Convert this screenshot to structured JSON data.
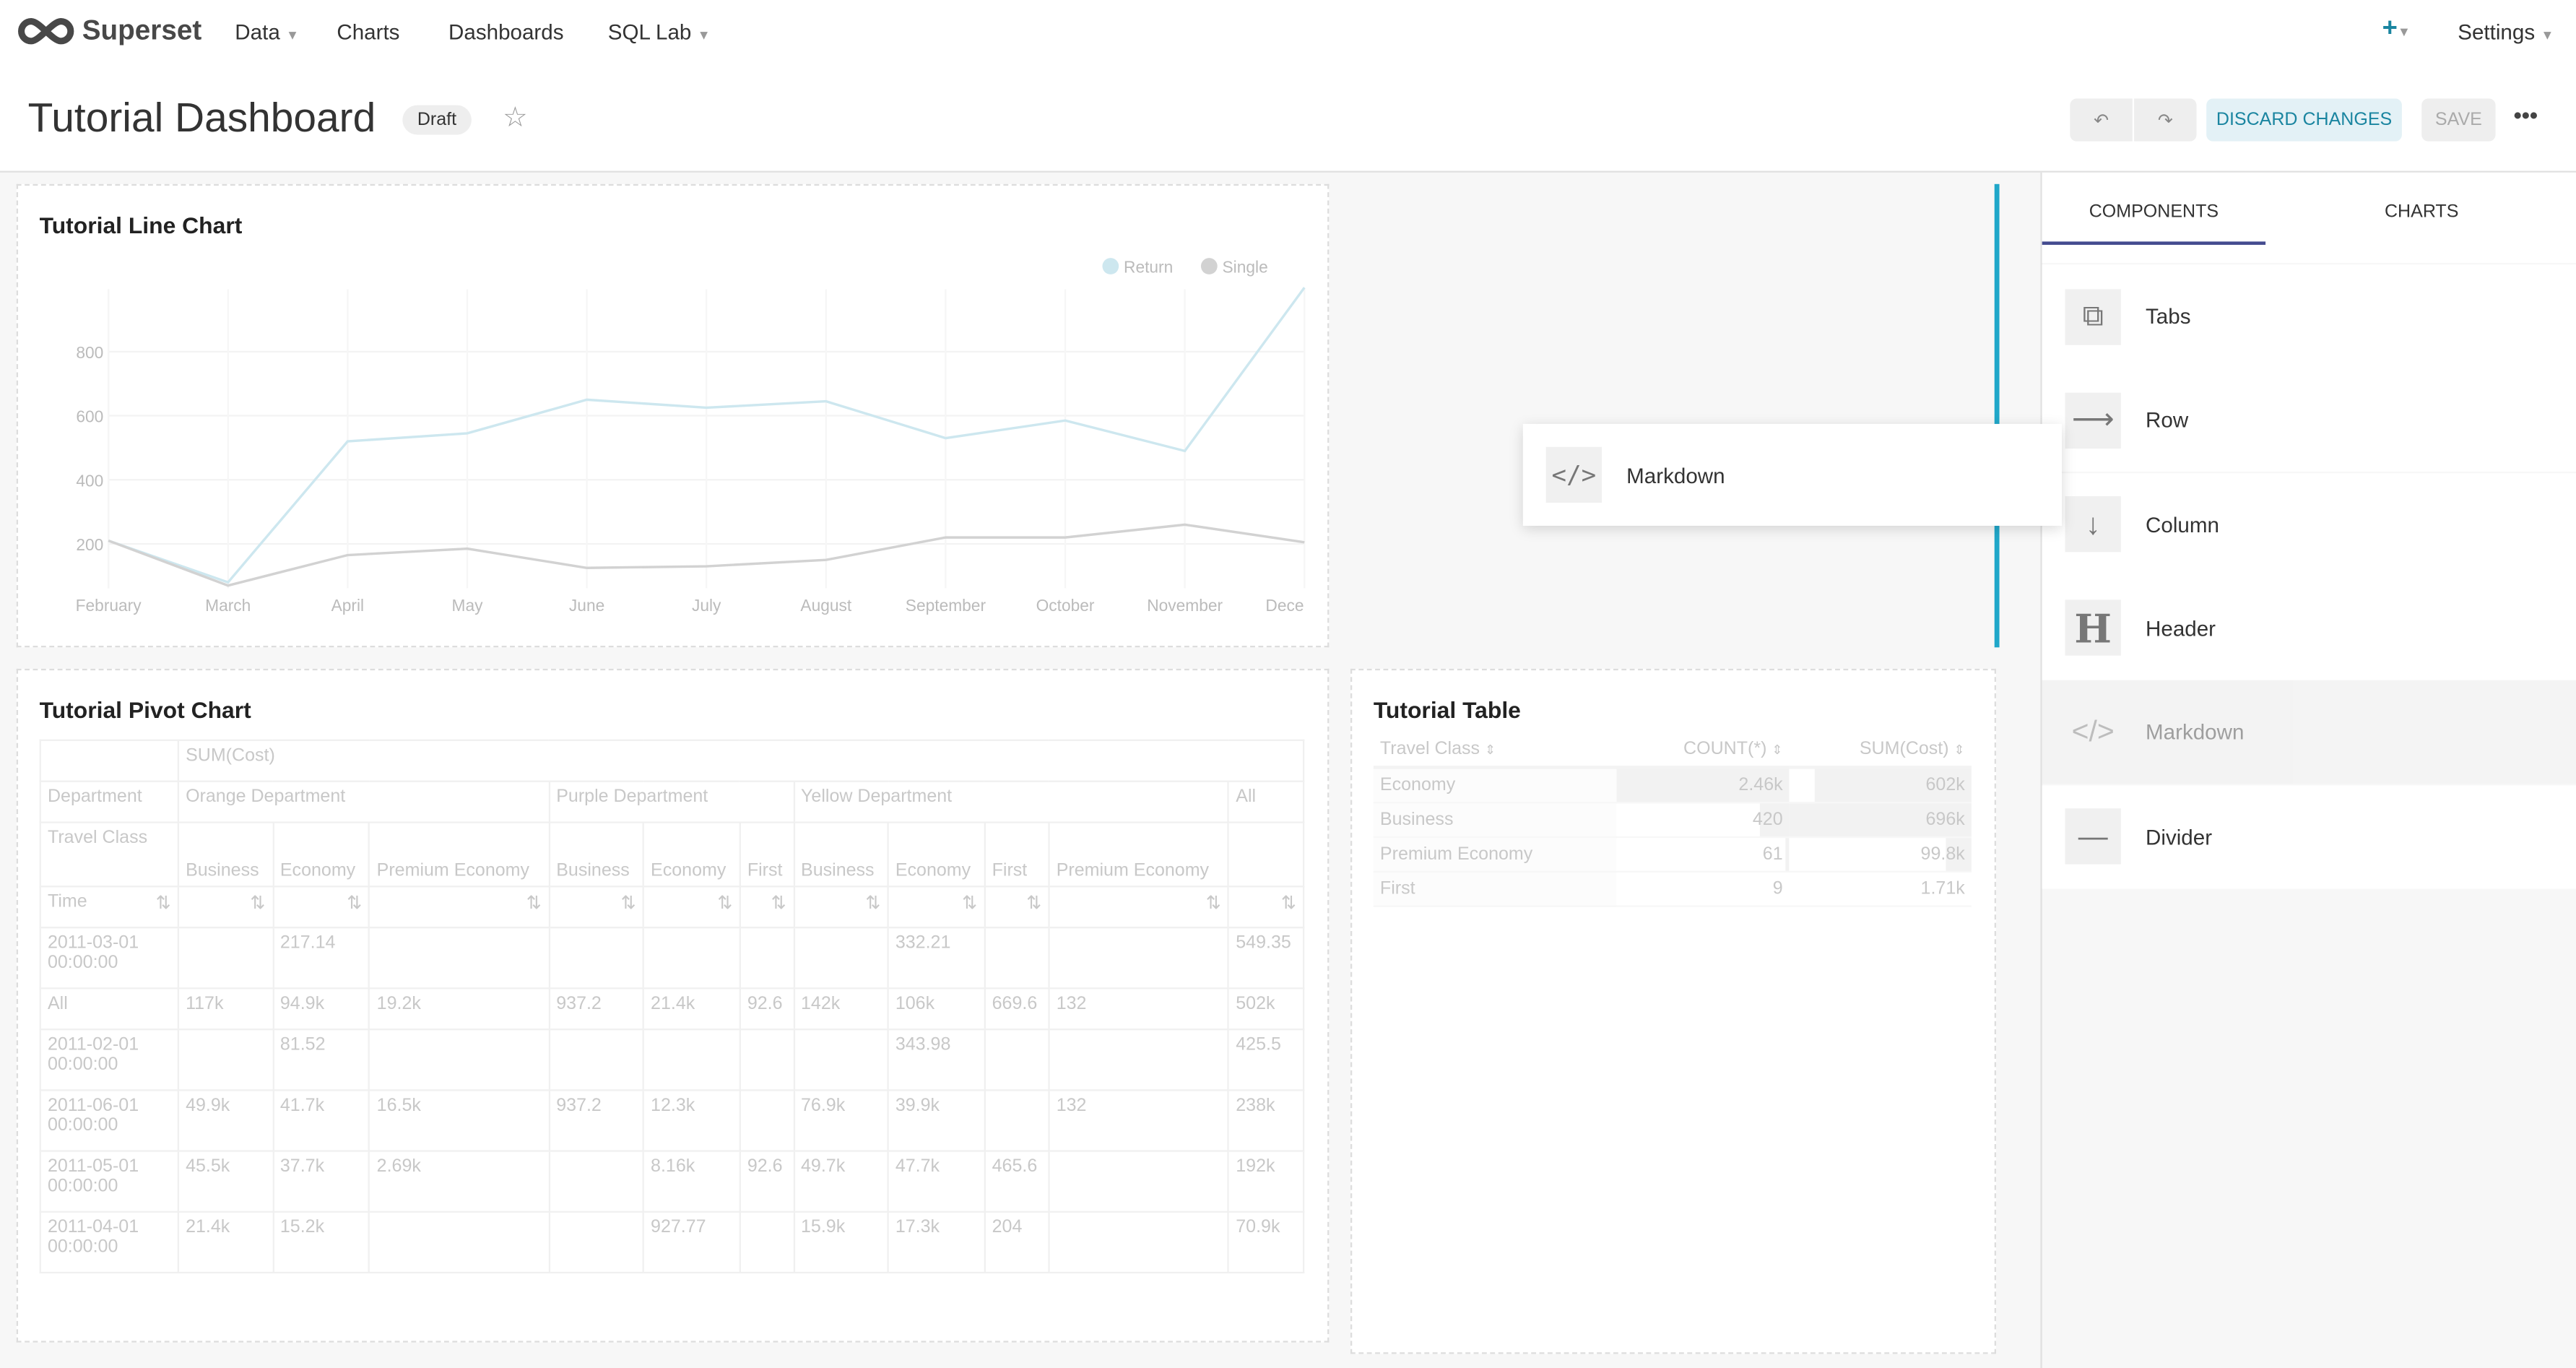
{
  "nav": {
    "brand": "Superset",
    "items": [
      {
        "label": "Data",
        "dropdown": true
      },
      {
        "label": "Charts"
      },
      {
        "label": "Dashboards"
      },
      {
        "label": "SQL Lab",
        "dropdown": true
      }
    ],
    "plus_icon": "plus-icon",
    "settings": "Settings"
  },
  "header": {
    "title": "Tutorial Dashboard",
    "badge": "Draft",
    "discard": "DISCARD CHANGES",
    "save": "SAVE",
    "more": "•••"
  },
  "colors": {
    "accent": "#20a7c9",
    "brand_blue": "#1a85a0",
    "return_line": "#cde7ef",
    "single_line": "#d2d2d2"
  },
  "line_chart": {
    "title": "Tutorial Line Chart",
    "chart_data": {
      "type": "line",
      "categories": [
        "February",
        "March",
        "April",
        "May",
        "June",
        "July",
        "August",
        "September",
        "October",
        "November",
        "Dece"
      ],
      "ylim": [
        0,
        1000
      ],
      "yticks": [
        "200",
        "400",
        "600",
        "800"
      ],
      "legend": "top-right",
      "grid": true,
      "series": [
        {
          "name": "Return",
          "values": [
            210,
            80,
            520,
            545,
            650,
            625,
            645,
            530,
            585,
            490,
            1000
          ]
        },
        {
          "name": "Single",
          "values": [
            210,
            70,
            165,
            185,
            125,
            130,
            150,
            220,
            220,
            260,
            205
          ]
        }
      ]
    }
  },
  "drag_preview": {
    "label": "Markdown"
  },
  "pivot": {
    "title": "Tutorial Pivot Chart",
    "metric": "SUM(Cost)",
    "dept_label": "Department",
    "class_label": "Travel Class",
    "time_label": "Time",
    "departments": [
      {
        "name": "Orange Department",
        "span": 3
      },
      {
        "name": "Purple Department",
        "span": 3
      },
      {
        "name": "Yellow Department",
        "span": 4
      },
      {
        "name": "All",
        "span": 1
      }
    ],
    "classes": [
      "Business",
      "Economy",
      "Premium Economy",
      "Business",
      "Economy",
      "First",
      "Business",
      "Economy",
      "First",
      "Premium Economy",
      ""
    ],
    "rows": [
      [
        "2011-03-01 00:00:00",
        "",
        "217.14",
        "",
        "",
        "",
        "",
        "",
        "332.21",
        "",
        "",
        "549.35"
      ],
      [
        "All",
        "117k",
        "94.9k",
        "19.2k",
        "937.2",
        "21.4k",
        "92.6",
        "142k",
        "106k",
        "669.6",
        "132",
        "502k"
      ],
      [
        "2011-02-01 00:00:00",
        "",
        "81.52",
        "",
        "",
        "",
        "",
        "",
        "343.98",
        "",
        "",
        "425.5"
      ],
      [
        "2011-06-01 00:00:00",
        "49.9k",
        "41.7k",
        "16.5k",
        "937.2",
        "12.3k",
        "",
        "76.9k",
        "39.9k",
        "",
        "132",
        "238k"
      ],
      [
        "2011-05-01 00:00:00",
        "45.5k",
        "37.7k",
        "2.69k",
        "",
        "8.16k",
        "92.6",
        "49.7k",
        "47.7k",
        "465.6",
        "",
        "192k"
      ],
      [
        "2011-04-01 00:00:00",
        "21.4k",
        "15.2k",
        "",
        "",
        "927.77",
        "",
        "15.9k",
        "17.3k",
        "204",
        "",
        "70.9k"
      ]
    ]
  },
  "table": {
    "title": "Tutorial Table",
    "columns": [
      "Travel Class",
      "COUNT(*)",
      "SUM(Cost)"
    ],
    "rows": [
      {
        "cls": "Economy",
        "count": "2.46k",
        "sum": "602k",
        "count_frac": 1.0,
        "sum_frac": 0.86
      },
      {
        "cls": "Business",
        "count": "420",
        "sum": "696k",
        "count_frac": 0.17,
        "sum_frac": 1.0
      },
      {
        "cls": "Premium Economy",
        "count": "61",
        "sum": "99.8k",
        "count_frac": 0.02,
        "sum_frac": 0.14
      },
      {
        "cls": "First",
        "count": "9",
        "sum": "1.71k",
        "count_frac": 0.0,
        "sum_frac": 0.0
      }
    ]
  },
  "sidebar": {
    "tabs": [
      "COMPONENTS",
      "CHARTS"
    ],
    "active_tab": 0,
    "components": [
      {
        "label": "Tabs",
        "icon": "tabs-icon"
      },
      {
        "label": "Row",
        "icon": "arrow-right-icon"
      },
      {
        "label": "Column",
        "icon": "arrow-down-icon"
      },
      {
        "label": "Header",
        "icon": "header-icon"
      },
      {
        "label": "Markdown",
        "icon": "code-icon",
        "dragging": true
      },
      {
        "label": "Divider",
        "icon": "divider-icon"
      }
    ]
  }
}
